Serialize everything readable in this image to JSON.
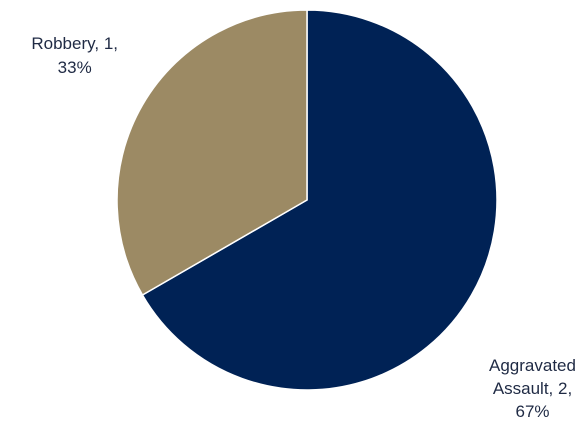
{
  "chart_data": {
    "type": "pie",
    "title": "",
    "categories": [
      "Aggravated Assault",
      "Robbery"
    ],
    "values": [
      2,
      1
    ],
    "percentages": [
      "67%",
      "33%"
    ],
    "colors": [
      "#002255",
      "#9c8a64"
    ],
    "label_lines": [
      [
        "Aggravated",
        "Assault, 2,",
        "67%"
      ],
      [
        "Robbery, 1,",
        "33%"
      ]
    ],
    "start_angle": "12 o'clock",
    "direction": "clockwise",
    "legend": "none"
  }
}
